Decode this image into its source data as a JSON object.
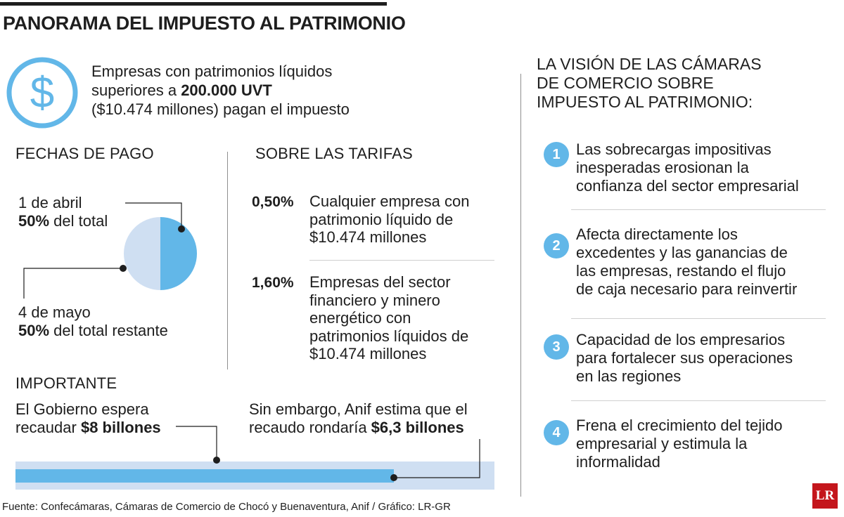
{
  "title": "PANORAMA DEL IMPUESTO AL PATRIMONIO",
  "intro": {
    "line1": "Empresas con patrimonios líquidos",
    "line2_pre": "superiores a ",
    "line2_bold": "200.000 UVT",
    "line3": "($10.474 millones) pagan el impuesto",
    "icon": "dollar-icon"
  },
  "payment": {
    "heading": "FECHAS DE PAGO",
    "first_date": "1 de abril",
    "first_bold": "50%",
    "first_rest": " del total",
    "second_date": "4 de mayo",
    "second_bold": "50%",
    "second_rest": " del total restante"
  },
  "chart_data": {
    "type": "pie",
    "values": [
      50,
      50
    ],
    "labels": [
      "1 de abril",
      "4 de mayo"
    ],
    "colors": [
      "#62b7e8",
      "#cfdff2"
    ]
  },
  "tariffs": {
    "heading": "SOBRE LAS TARIFAS",
    "items": [
      {
        "rate": "0,50%",
        "lines": [
          "Cualquier empresa con",
          "patrimonio líquido de",
          "$10.474 millones"
        ]
      },
      {
        "rate": "1,60%",
        "lines": [
          "Empresas del sector",
          "financiero y minero",
          "energético con",
          "patrimonios líquidos de",
          "$10.474 millones"
        ]
      }
    ]
  },
  "important": {
    "heading": "IMPORTANTE",
    "gov_line1": "El Gobierno espera",
    "gov_line2_pre": "recaudar ",
    "gov_line2_bold": "$8 billones",
    "anif_line1": "Sin embargo, Anif estima que el",
    "anif_line2_pre": "recaudo rondaría ",
    "anif_line2_bold": "$6,3 billones",
    "bar_total": 8,
    "bar_estimate": 6.3,
    "bar_color": "#62b7e8",
    "bar_bg_color": "#cfdff2"
  },
  "vision": {
    "heading_lines": [
      "LA VISIÓN DE LAS CÁMARAS",
      "DE COMERCIO SOBRE",
      "IMPUESTO AL PATRIMONIO:"
    ],
    "items": [
      {
        "num": "1",
        "lines": [
          "Las sobrecargas impositivas",
          "inesperadas erosionan la",
          "confianza del sector empresarial"
        ]
      },
      {
        "num": "2",
        "lines": [
          "Afecta directamente los",
          "excedentes y las ganancias de",
          "las empresas, restando el flujo",
          "de caja necesario para reinvertir"
        ]
      },
      {
        "num": "3",
        "lines": [
          "Capacidad de los empresarios",
          "para fortalecer sus operaciones",
          "en las regiones"
        ]
      },
      {
        "num": "4",
        "lines": [
          "Frena el crecimiento del tejido",
          "empresarial y estimula la",
          "informalidad"
        ]
      }
    ]
  },
  "source": "Fuente: Confecámaras, Cámaras de Comercio de Chocó y Buenaventura, Anif / Gráfico: LR-GR",
  "logo": "LR"
}
